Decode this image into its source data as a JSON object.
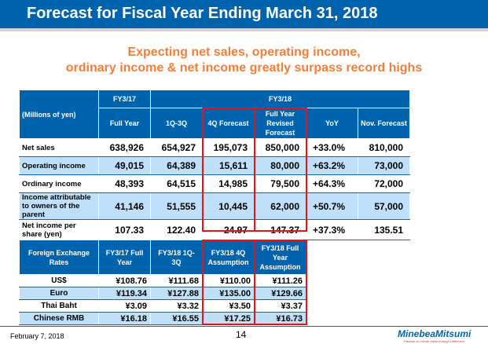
{
  "title": "Forecast for Fiscal Year Ending March 31, 2018",
  "subtitle": [
    "Expecting net sales, operating income,",
    "ordinary income & net income greatly surpass record highs"
  ],
  "main_table": {
    "unit": "(Millions of yen)",
    "group_headers": [
      "FY3/17",
      "FY3/18"
    ],
    "columns": [
      "Full Year",
      "1Q-3Q",
      "4Q Forecast",
      "Full Year Revised Forecast",
      "YoY",
      "Nov. Forecast"
    ],
    "rows": [
      {
        "label": "Net sales",
        "values": [
          "638,926",
          "654,927",
          "195,073",
          "850,000",
          "+33.0%",
          "810,000"
        ]
      },
      {
        "label": "Operating income",
        "values": [
          "49,015",
          "64,389",
          "15,611",
          "80,000",
          "+63.2%",
          "73,000"
        ]
      },
      {
        "label": "Ordinary income",
        "values": [
          "48,393",
          "64,515",
          "14,985",
          "79,500",
          "+64.3%",
          "72,000"
        ]
      },
      {
        "label": "Income attributable to owners of the parent",
        "values": [
          "41,146",
          "51,555",
          "10,445",
          "62,000",
          "+50.7%",
          "57,000"
        ]
      },
      {
        "label": "Net income per share (yen)",
        "values": [
          "107.33",
          "122.40",
          "24.97",
          "147.37",
          "+37.3%",
          "135.51"
        ]
      }
    ]
  },
  "fx_table": {
    "columns": [
      "Foreign Exchange Rates",
      "FY3/17 Full Year",
      "FY3/18 1Q-3Q",
      "FY3/18 4Q Assumption",
      "FY3/18 Full Year Assumption"
    ],
    "rows": [
      {
        "label": "US$",
        "values": [
          "¥108.76",
          "¥111.68",
          "¥110.00",
          "¥111.26"
        ]
      },
      {
        "label": "Euro",
        "values": [
          "¥119.34",
          "¥127.88",
          "¥135.00",
          "¥129.66"
        ]
      },
      {
        "label": "Thai Baht",
        "values": [
          "¥3.09",
          "¥3.32",
          "¥3.50",
          "¥3.37"
        ]
      },
      {
        "label": "Chinese RMB",
        "values": [
          "¥16.18",
          "¥16.55",
          "¥17.25",
          "¥16.73"
        ]
      }
    ]
  },
  "footer": {
    "date": "February 7, 2018",
    "page": "14",
    "logo": "MinebeaMitsumi",
    "tagline": "Passion to Create Value through Difference"
  },
  "colors": {
    "brand_blue": "#0063ae",
    "accent_orange": "#f07f3c",
    "highlight_red": "#e2141c",
    "row_alt": "#bfe0fa"
  }
}
